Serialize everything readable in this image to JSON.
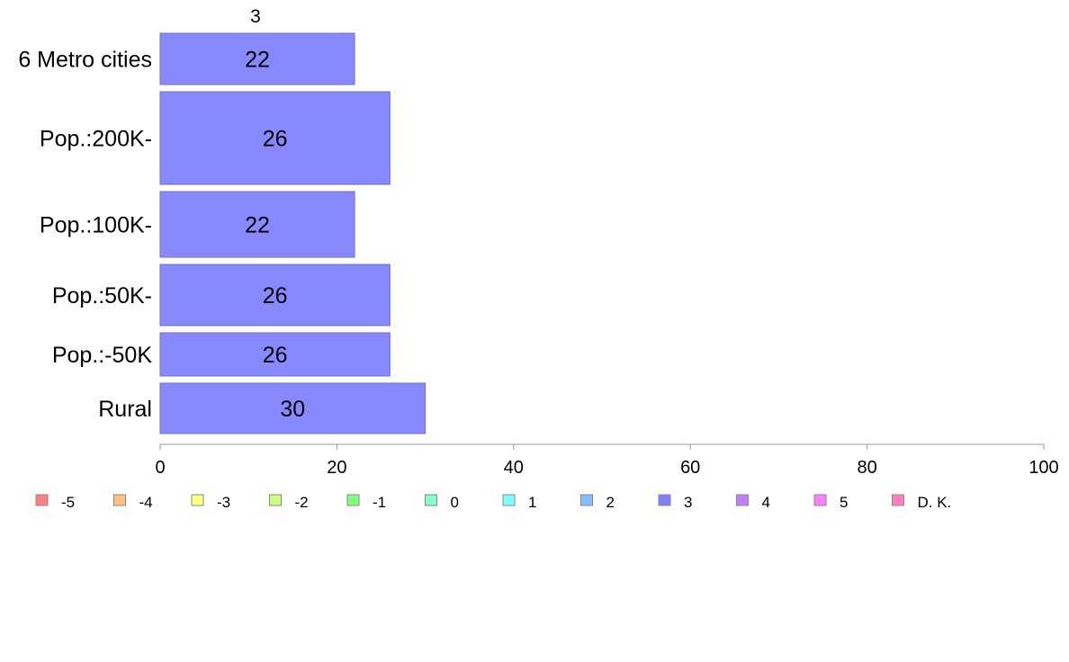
{
  "chart_data": {
    "type": "bar",
    "orientation": "horizontal",
    "column_header": "3",
    "categories": [
      "6 Metro cities",
      "Pop.:200K-",
      "Pop.:100K-",
      "Pop.:50K-",
      "Pop.:-50K",
      "Rural"
    ],
    "series": [
      {
        "name": "3",
        "color": "#8888ff",
        "values": [
          22,
          26,
          22,
          26,
          26,
          30
        ]
      }
    ],
    "bar_labels": [
      "22",
      "26",
      "22",
      "26",
      "26",
      "30"
    ],
    "xlim": [
      0,
      100
    ],
    "x_ticks": [
      0,
      20,
      40,
      60,
      80,
      100
    ],
    "x_tick_labels": [
      "0",
      "20",
      "40",
      "60",
      "80",
      "100"
    ],
    "grid": false,
    "legend": {
      "placement": "bottom",
      "items": [
        {
          "label": "-5",
          "color": "#ff8080"
        },
        {
          "label": "-4",
          "color": "#ffc080"
        },
        {
          "label": "-3",
          "color": "#ffff80"
        },
        {
          "label": "-2",
          "color": "#c8ff80"
        },
        {
          "label": "-1",
          "color": "#80ff80"
        },
        {
          "label": "0",
          "color": "#80ffc8"
        },
        {
          "label": "1",
          "color": "#80ffff"
        },
        {
          "label": "2",
          "color": "#80c0ff"
        },
        {
          "label": "3",
          "color": "#8080ff"
        },
        {
          "label": "4",
          "color": "#c080ff"
        },
        {
          "label": "5",
          "color": "#ff80ff"
        },
        {
          "label": "D. K.",
          "color": "#ff80c0"
        }
      ]
    }
  }
}
